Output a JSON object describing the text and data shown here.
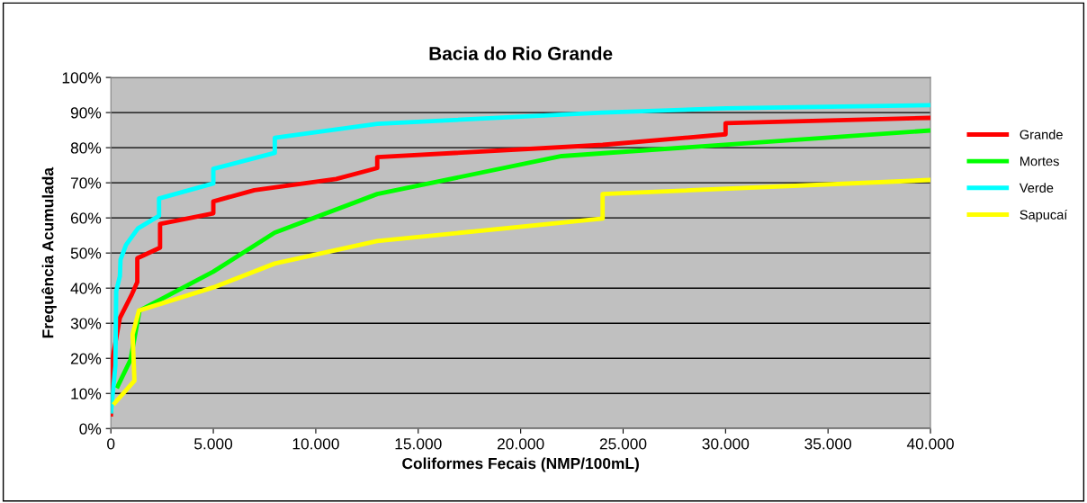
{
  "chart_data": {
    "type": "line",
    "title": "Bacia do Rio Grande",
    "xlabel": "Coliformes Fecais (NMP/100mL)",
    "ylabel": "Frequência Acumulada",
    "series": [
      {
        "name": "Grande",
        "color": "#ff0000",
        "x": [
          0,
          70,
          440,
          1030,
          1290,
          1290,
          2400,
          2400,
          5000,
          5000,
          7000,
          11000,
          13000,
          13000,
          24000,
          30000,
          30000,
          40000
        ],
        "values": [
          3.4,
          19.6,
          31.5,
          38.3,
          41.7,
          48.5,
          51.5,
          58.3,
          61.3,
          64.7,
          67.9,
          71.1,
          74.2,
          77.3,
          80.8,
          83.8,
          87.0,
          88.5
        ]
      },
      {
        "name": "Mortes",
        "color": "#00ff00",
        "x": [
          290,
          960,
          1400,
          5000,
          8000,
          13000,
          22000,
          40000
        ],
        "values": [
          11.5,
          19.6,
          33.6,
          44.7,
          55.8,
          66.8,
          77.6,
          84.9
        ]
      },
      {
        "name": "Verde",
        "color": "#00ffff",
        "x": [
          0,
          220,
          260,
          440,
          470,
          740,
          1320,
          2350,
          2350,
          5000,
          5000,
          8000,
          8000,
          13000,
          24000,
          30000,
          40000
        ],
        "values": [
          4.3,
          17.9,
          39.1,
          43.4,
          48.1,
          52.3,
          57.0,
          60.6,
          65.5,
          69.8,
          74.0,
          78.5,
          82.8,
          86.8,
          90.0,
          91.2,
          92.1
        ]
      },
      {
        "name": "Sapucaí",
        "color": "#ffff00",
        "x": [
          120,
          1150,
          1060,
          1370,
          5000,
          8000,
          13000,
          24000,
          24000,
          40000
        ],
        "values": [
          6.8,
          13.6,
          26.8,
          33.6,
          40.2,
          47.0,
          53.4,
          59.8,
          66.8,
          70.8
        ]
      }
    ],
    "xlim": [
      0,
      40000
    ],
    "xticks": [
      0,
      {
        "value": 5000,
        "label": "5.000"
      },
      {
        "value": 10000,
        "label": "10.000"
      },
      {
        "value": 15000,
        "label": "15.000"
      },
      {
        "value": 20000,
        "label": "20.000"
      },
      {
        "value": 25000,
        "label": "25.000"
      },
      {
        "value": 30000,
        "label": "30.000"
      },
      {
        "value": 35000,
        "label": "35.000"
      },
      {
        "value": 40000,
        "label": "40.000"
      }
    ],
    "ylim": [
      0,
      100
    ],
    "yticks": [
      {
        "value": 0,
        "label": "0%"
      },
      {
        "value": 10,
        "label": "10%"
      },
      {
        "value": 20,
        "label": "20%"
      },
      {
        "value": 30,
        "label": "30%"
      },
      {
        "value": 40,
        "label": "40%"
      },
      {
        "value": 50,
        "label": "50%"
      },
      {
        "value": 60,
        "label": "60%"
      },
      {
        "value": 70,
        "label": "70%"
      },
      {
        "value": 80,
        "label": "80%"
      },
      {
        "value": 90,
        "label": "90%"
      },
      {
        "value": 100,
        "label": "100%"
      }
    ],
    "grid": "y",
    "legend": "right",
    "marker": "none",
    "line_style": "solid"
  }
}
